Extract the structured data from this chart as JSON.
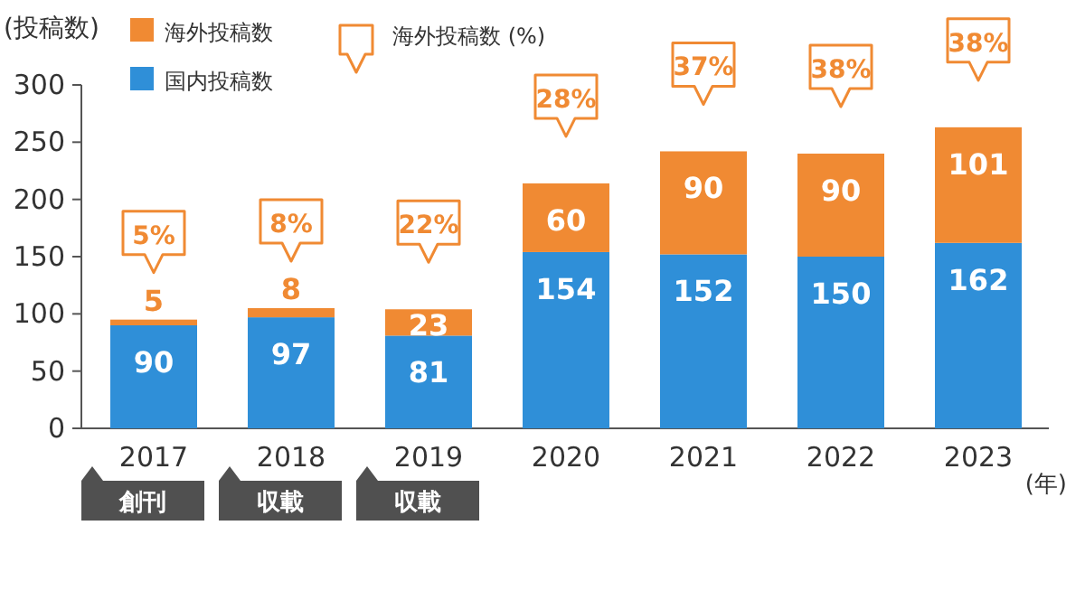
{
  "chart_data": {
    "type": "bar",
    "stacked": true,
    "ylabel": "(投稿数)",
    "xlabel": "(年)",
    "categories": [
      "2017",
      "2018",
      "2019",
      "2020",
      "2021",
      "2022",
      "2023"
    ],
    "series": [
      {
        "name": "国内投稿数",
        "color": "#2f8fd8",
        "values": [
          90,
          97,
          81,
          154,
          152,
          150,
          162
        ]
      },
      {
        "name": "海外投稿数",
        "color": "#f08a33",
        "values": [
          5,
          8,
          23,
          60,
          90,
          90,
          101
        ]
      }
    ],
    "ylim": [
      0,
      300
    ],
    "yticks": [
      0,
      50,
      100,
      150,
      200,
      250,
      300
    ],
    "data_labels": true,
    "legend": "top left",
    "grid": false,
    "annotations": [
      "海外投稿数 (%)",
      {
        "text": "5%",
        "x": "2017",
        "y": 95
      },
      {
        "text": "8%",
        "x": "2018",
        "y": 105
      },
      {
        "text": "22%",
        "x": "2019",
        "y": 104
      },
      {
        "text": "28%",
        "x": "2020",
        "y": 214
      },
      {
        "text": "37%",
        "x": "2021",
        "y": 242
      },
      {
        "text": "38%",
        "x": "2022",
        "y": 240
      },
      {
        "text": "38%",
        "x": "2023",
        "y": 263
      },
      "創刊",
      "収載",
      "収載"
    ]
  }
}
